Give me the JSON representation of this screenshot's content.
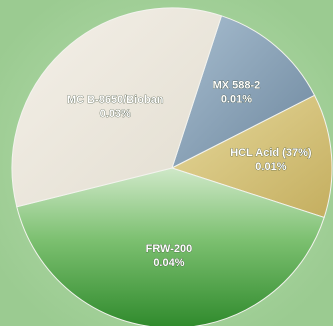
{
  "chart_data": {
    "type": "pie",
    "title": "",
    "slices": [
      {
        "name": "MX 588-2",
        "label": "0.01%",
        "value": 0.01,
        "color": "#8aa3b9"
      },
      {
        "name": "HCL Acid (37%)",
        "label": "0.01%",
        "value": 0.01,
        "color": "#d8c780"
      },
      {
        "name": "FRW-200",
        "label": "0.04%",
        "value": 0.04,
        "color": "#4ea146"
      },
      {
        "name": "MC B-8650/Bioban",
        "label": "0.03%",
        "value": 0.03,
        "color": "#ece7dc"
      }
    ],
    "background": "#a5d29c",
    "legend": "none"
  }
}
